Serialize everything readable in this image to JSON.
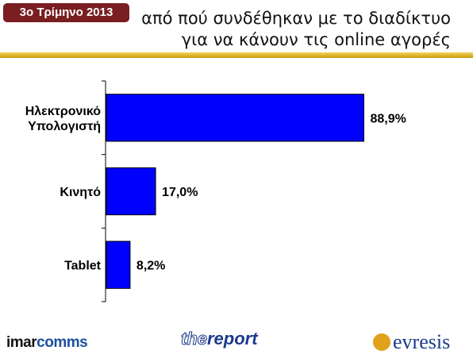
{
  "badge": "3ο Τρίμηνο 2013",
  "title_lines": [
    "από πού συνδέθηκαν με το διαδίκτυο",
    "για να κάνουν τις online αγορές"
  ],
  "logos": {
    "imarcomms": {
      "part1": "imar",
      "part2": "comms"
    },
    "thereport": {
      "part1": "the",
      "part2": "report"
    },
    "evresis": "evresis"
  },
  "colors": {
    "bar": "#0000ff",
    "badge": "#7a1e22",
    "rule": "#e2b83a"
  },
  "chart_data": {
    "type": "bar",
    "orientation": "horizontal",
    "categories": [
      [
        "Ηλεκτρονικό",
        "Υπολογιστή"
      ],
      [
        "Κινητό"
      ],
      [
        "Tablet"
      ]
    ],
    "values": [
      88.9,
      17.0,
      8.2
    ],
    "value_labels": [
      "88,9%",
      "17,0%",
      "8,2%"
    ],
    "xlim": [
      0,
      100
    ],
    "grid": false,
    "legend": "none"
  }
}
